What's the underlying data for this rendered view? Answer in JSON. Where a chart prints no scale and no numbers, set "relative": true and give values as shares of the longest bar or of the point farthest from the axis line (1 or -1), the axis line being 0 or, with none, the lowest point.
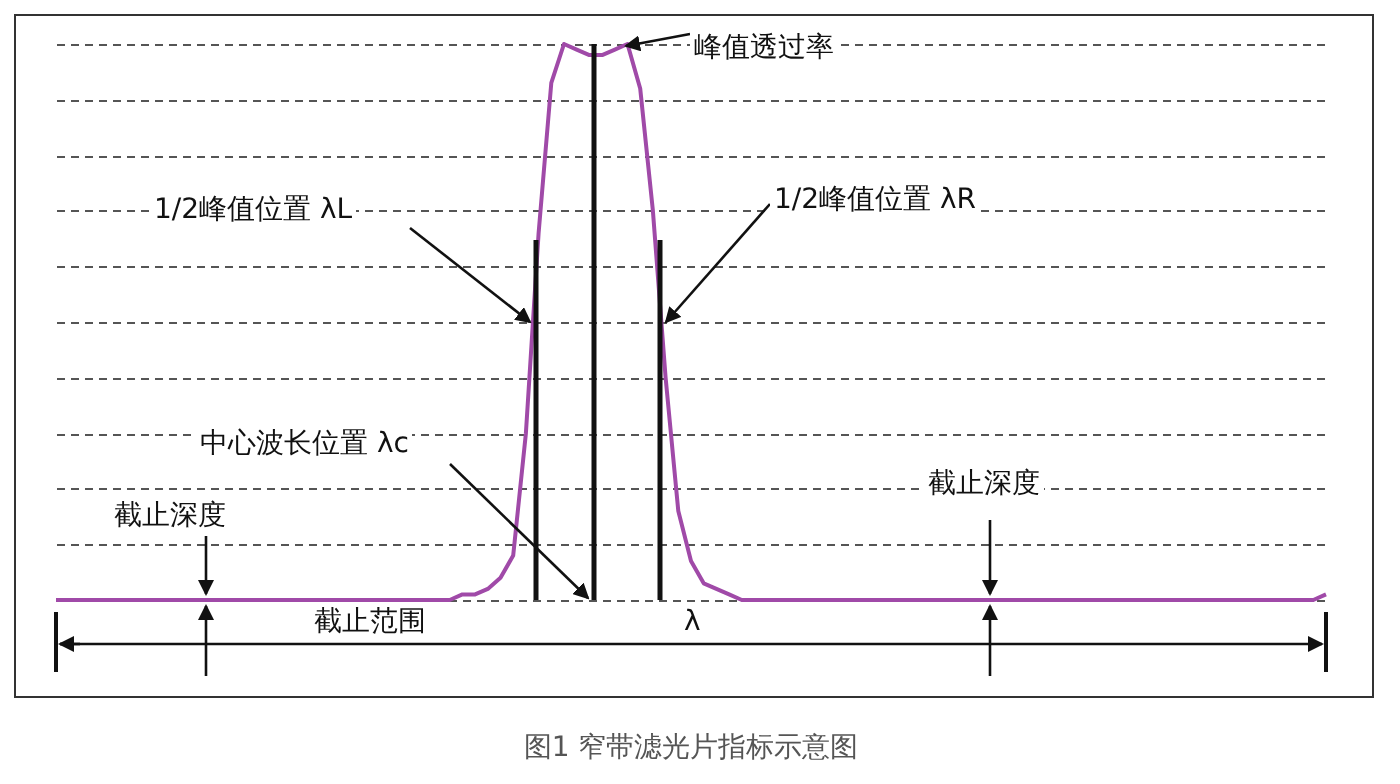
{
  "chart_data": {
    "type": "line",
    "title": "图1 窄带滤光片指标示意图",
    "relative": true,
    "grid": true,
    "annotations": [
      "峰值透过率",
      "1/2峰值位置 λL",
      "1/2峰值位置 λR",
      "中心波长位置 λc",
      "截止深度",
      "截止深度",
      "截止范围",
      "λ"
    ],
    "categories": [
      null,
      null,
      null,
      null,
      null,
      null,
      null,
      null,
      null,
      null,
      null,
      null,
      null,
      null,
      null,
      null,
      null,
      null,
      null,
      null,
      null,
      null,
      null,
      null,
      null,
      null,
      null,
      null,
      null,
      null,
      null,
      null,
      null,
      null,
      null,
      null,
      null,
      null,
      null,
      null,
      null,
      null,
      null,
      null,
      null,
      null,
      null,
      null,
      null,
      null,
      null,
      null,
      null,
      null,
      null,
      null,
      null,
      null,
      null,
      null,
      null,
      null,
      null,
      null,
      null,
      null,
      null,
      null,
      null,
      null,
      null,
      null,
      null,
      null,
      null,
      null,
      null,
      null,
      null,
      null,
      null,
      null,
      null,
      null,
      null,
      null,
      null,
      null,
      null,
      null,
      null,
      null,
      null,
      null,
      null,
      null,
      null,
      null,
      null,
      null,
      null
    ],
    "series": [
      {
        "color": "#a04aa8",
        "values": [
          0,
          0,
          0,
          0,
          0,
          0,
          0,
          0,
          0,
          0,
          0,
          0,
          0,
          0,
          0,
          0,
          0,
          0,
          0,
          0,
          0,
          0,
          0,
          0,
          0,
          0,
          0,
          0,
          0,
          0,
          0,
          0,
          0.01,
          0.01,
          0.02,
          0.04,
          0.08,
          0.3,
          0.66,
          0.93,
          1,
          0.99,
          0.98,
          0.98,
          0.99,
          1,
          0.92,
          0.7,
          0.4,
          0.16,
          0.07,
          0.03,
          0.02,
          0.01,
          0,
          0,
          0,
          0,
          0,
          0,
          0,
          0,
          0,
          0,
          0,
          0,
          0,
          0,
          0,
          0,
          0,
          0,
          0,
          0,
          0,
          0,
          0,
          0,
          0,
          0,
          0,
          0,
          0,
          0,
          0,
          0,
          0,
          0,
          0,
          0,
          0,
          0,
          0,
          0,
          0,
          0,
          0,
          0,
          0,
          0,
          0.01
        ]
      }
    ]
  }
}
